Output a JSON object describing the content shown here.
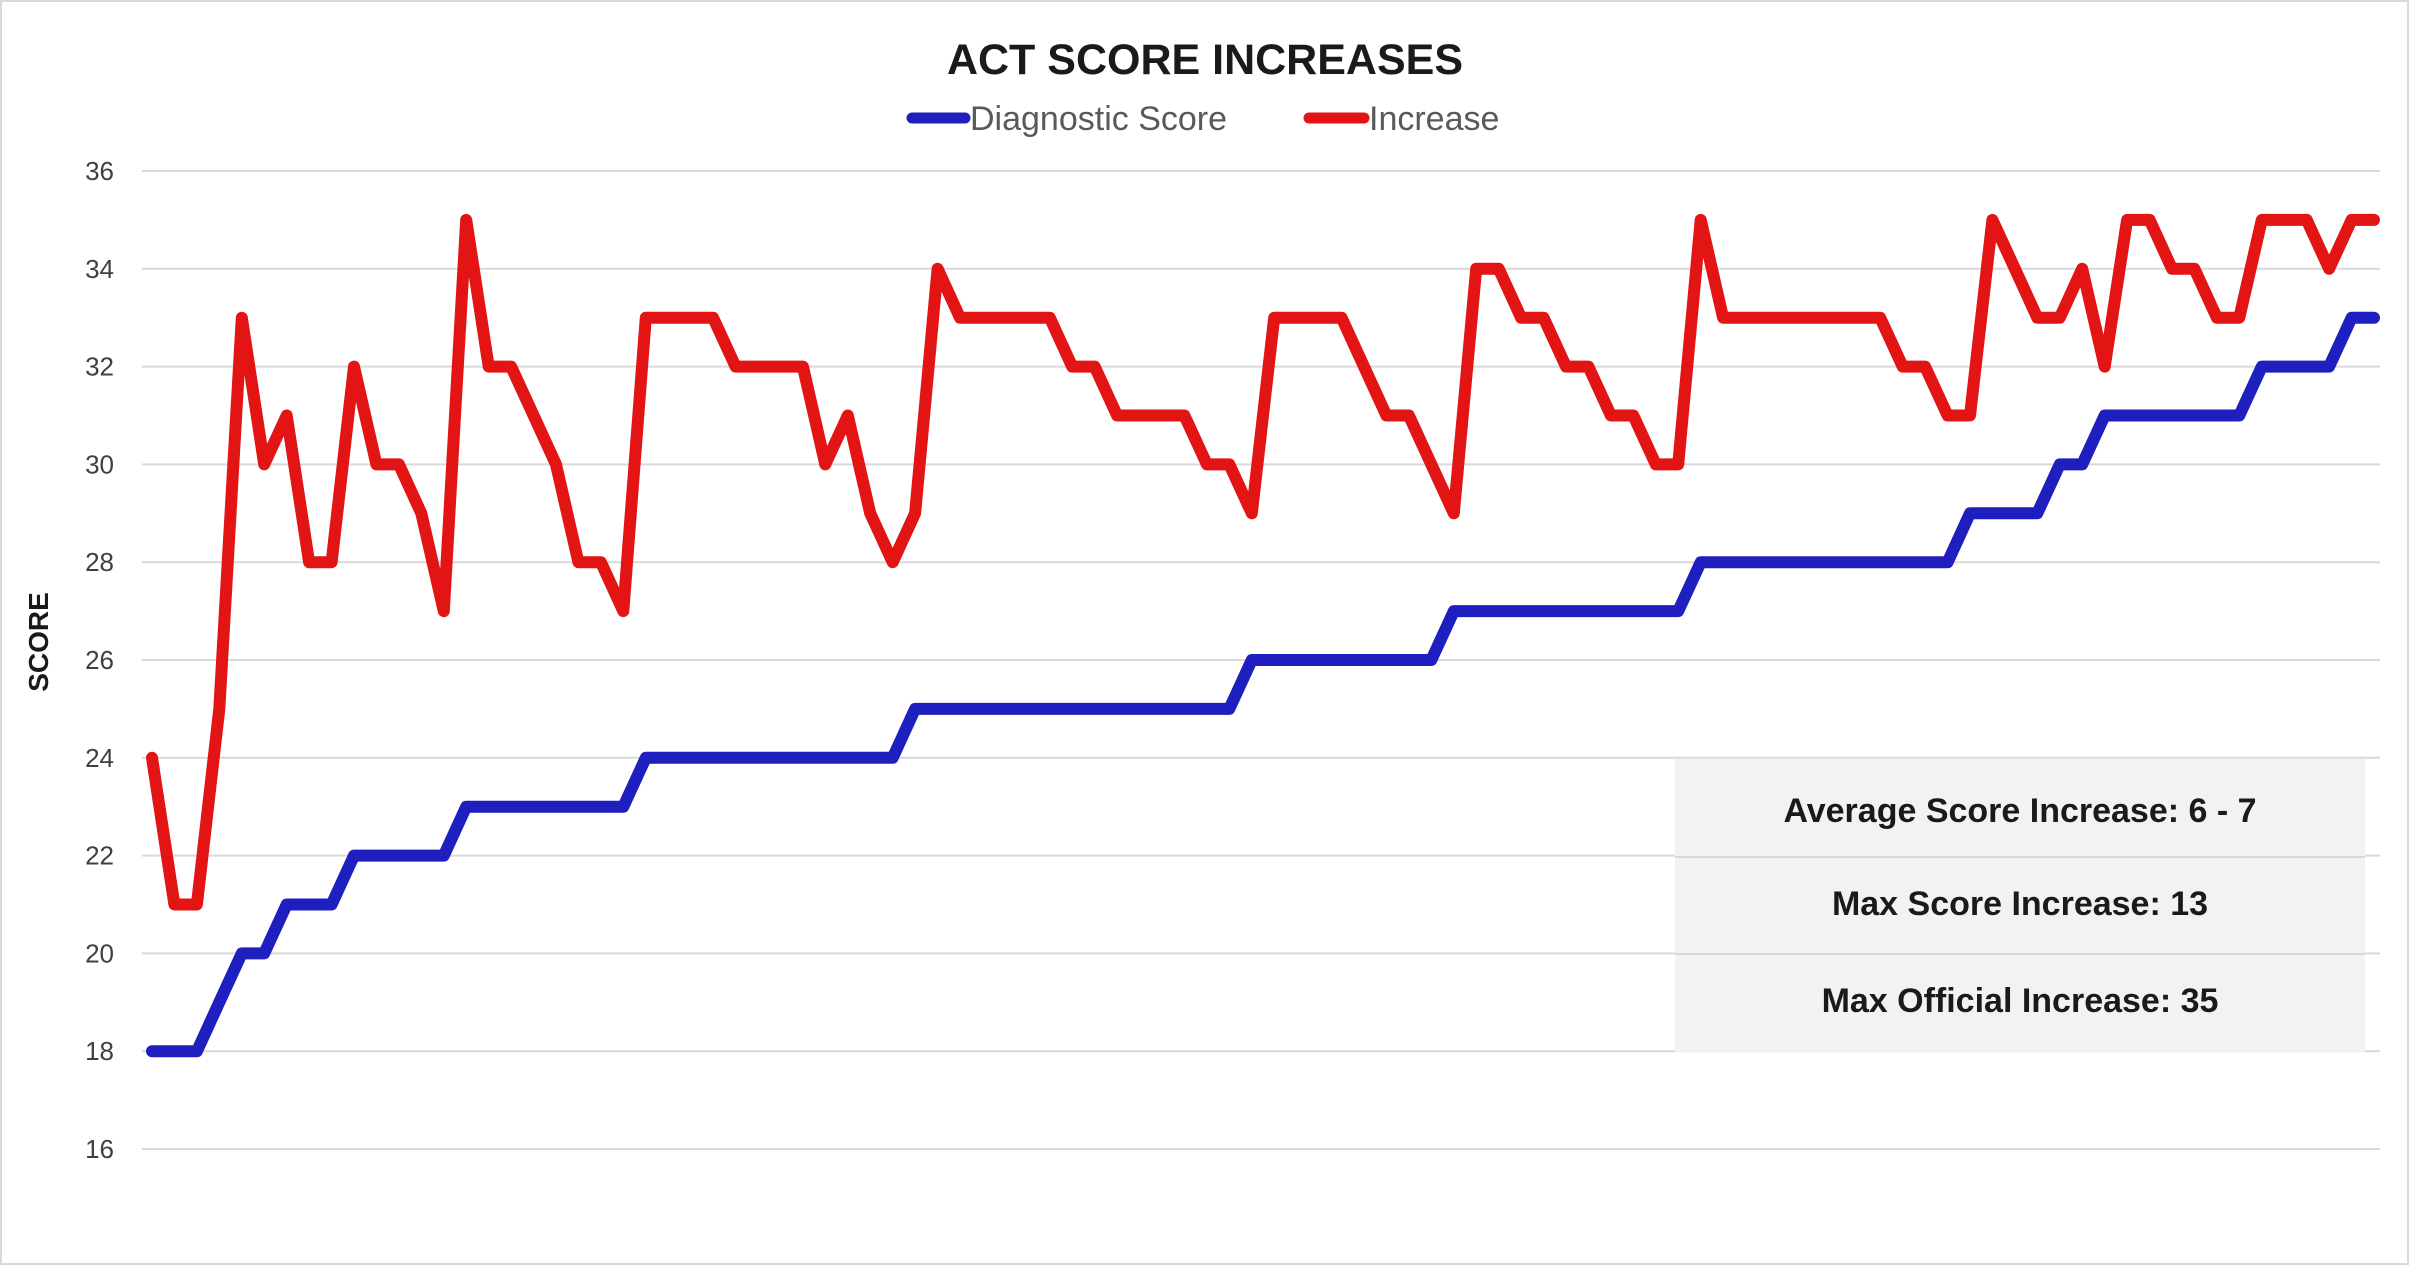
{
  "chart_data": {
    "type": "line",
    "title": "ACT SCORE INCREASES",
    "xlabel": "",
    "ylabel": "SCORE",
    "ylim": [
      16,
      36
    ],
    "yticks": [
      16,
      18,
      20,
      22,
      24,
      26,
      28,
      30,
      32,
      34,
      36
    ],
    "grid": true,
    "legend_position": "top-center",
    "series": [
      {
        "name": "Diagnostic Score",
        "color": "#1f1fbf",
        "values": [
          18,
          18,
          18,
          19,
          20,
          20,
          21,
          21,
          21,
          22,
          22,
          22,
          22,
          22,
          23,
          23,
          23,
          23,
          23,
          23,
          23,
          23,
          24,
          24,
          24,
          24,
          24,
          24,
          24,
          24,
          24,
          24,
          24,
          24,
          25,
          25,
          25,
          25,
          25,
          25,
          25,
          25,
          25,
          25,
          25,
          25,
          25,
          25,
          25,
          26,
          26,
          26,
          26,
          26,
          26,
          26,
          26,
          26,
          27,
          27,
          27,
          27,
          27,
          27,
          27,
          27,
          27,
          27,
          27,
          28,
          28,
          28,
          28,
          28,
          28,
          28,
          28,
          28,
          28,
          28,
          28,
          29,
          29,
          29,
          29,
          30,
          30,
          31,
          31,
          31,
          31,
          31,
          31,
          31,
          32,
          32,
          32,
          32,
          33,
          33
        ]
      },
      {
        "name": "Increase",
        "color": "#e31414",
        "values": [
          24,
          21,
          21,
          25,
          33,
          30,
          31,
          28,
          28,
          32,
          30,
          30,
          29,
          27,
          35,
          32,
          32,
          31,
          30,
          28,
          28,
          27,
          33,
          33,
          33,
          33,
          32,
          32,
          32,
          32,
          30,
          31,
          29,
          28,
          29,
          34,
          33,
          33,
          33,
          33,
          33,
          32,
          32,
          31,
          31,
          31,
          31,
          30,
          30,
          29,
          33,
          33,
          33,
          33,
          32,
          31,
          31,
          30,
          29,
          34,
          34,
          33,
          33,
          32,
          32,
          31,
          31,
          30,
          30,
          35,
          33,
          33,
          33,
          33,
          33,
          33,
          33,
          33,
          32,
          32,
          31,
          31,
          35,
          34,
          33,
          33,
          34,
          32,
          35,
          35,
          34,
          34,
          33,
          33,
          35,
          35,
          35,
          34,
          35,
          35
        ]
      }
    ],
    "annotations": [
      "Average Score Increase: 6 - 7",
      "Max Score Increase: 13",
      "Max Official Increase: 35"
    ],
    "annotation_box_color": "#f2f2f2",
    "grid_color": "#d9d9d9"
  }
}
